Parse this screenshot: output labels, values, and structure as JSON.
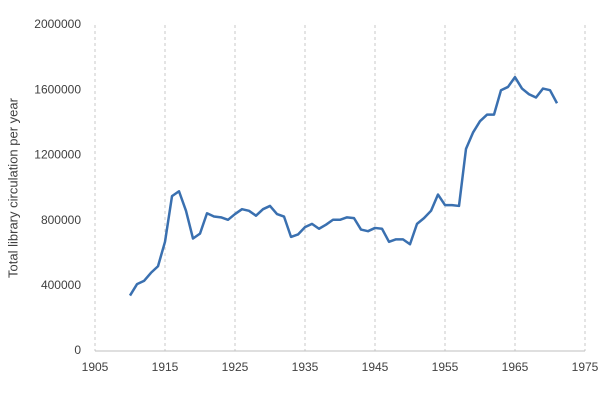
{
  "chart_data": {
    "type": "line",
    "y_label": "Total library circulation per year",
    "x": [
      1910,
      1911,
      1912,
      1913,
      1914,
      1915,
      1916,
      1917,
      1918,
      1919,
      1920,
      1921,
      1922,
      1923,
      1924,
      1925,
      1926,
      1927,
      1928,
      1929,
      1930,
      1931,
      1932,
      1933,
      1934,
      1935,
      1936,
      1937,
      1938,
      1939,
      1940,
      1941,
      1942,
      1943,
      1944,
      1945,
      1946,
      1947,
      1948,
      1949,
      1950,
      1951,
      1952,
      1953,
      1954,
      1955,
      1956,
      1957,
      1958,
      1959,
      1960,
      1961,
      1962,
      1963,
      1964,
      1965,
      1966,
      1967,
      1968,
      1969,
      1970,
      1971
    ],
    "series": [
      {
        "color": "#3a70b0",
        "values": [
          340000,
          410000,
          430000,
          480000,
          520000,
          670000,
          950000,
          980000,
          860000,
          690000,
          720000,
          845000,
          825000,
          820000,
          805000,
          840000,
          870000,
          860000,
          830000,
          870000,
          890000,
          840000,
          825000,
          700000,
          715000,
          760000,
          780000,
          750000,
          775000,
          805000,
          805000,
          820000,
          815000,
          745000,
          735000,
          755000,
          750000,
          670000,
          685000,
          685000,
          655000,
          780000,
          815000,
          860000,
          960000,
          895000,
          895000,
          890000,
          1240000,
          1340000,
          1410000,
          1450000,
          1450000,
          1600000,
          1620000,
          1680000,
          1610000,
          1575000,
          1555000,
          1610000,
          1600000,
          1520000
        ]
      }
    ],
    "xlim": [
      1905,
      1975
    ],
    "xticks": [
      1905,
      1915,
      1925,
      1935,
      1945,
      1955,
      1965,
      1975
    ],
    "ylim": [
      0,
      2000000
    ],
    "yticks": [
      0,
      400000,
      800000,
      1200000,
      1600000,
      2000000
    ],
    "x_grid": true
  }
}
